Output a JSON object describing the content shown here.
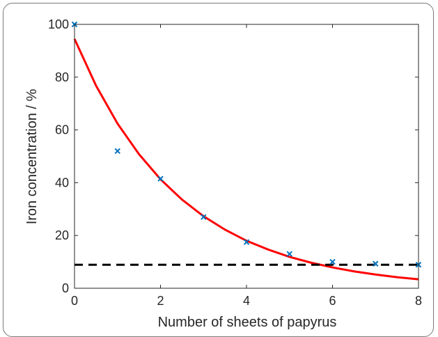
{
  "chart_data": {
    "type": "scatter",
    "title": "",
    "xlabel": "Number of sheets of papyrus",
    "ylabel": "Iron concentration / %",
    "xlim": [
      0,
      8
    ],
    "ylim": [
      0,
      100
    ],
    "xticks": [
      0,
      2,
      4,
      6,
      8
    ],
    "yticks": [
      0,
      20,
      40,
      60,
      80,
      100
    ],
    "grid": false,
    "series": [
      {
        "kind": "scatter",
        "marker": "x",
        "color": "#0072BD",
        "x": [
          0,
          1,
          2,
          3,
          4,
          5,
          6,
          7,
          8
        ],
        "y": [
          100,
          52,
          41.5,
          27,
          17.5,
          13,
          10,
          9.3,
          8.9
        ]
      },
      {
        "kind": "line",
        "style": "solid",
        "color": "#ff0000",
        "x": [
          0,
          0.5,
          1,
          1.5,
          2,
          2.5,
          3,
          3.5,
          4,
          4.5,
          5,
          5.5,
          6,
          6.5,
          7,
          7.5,
          8
        ],
        "y": [
          94.5,
          76.8,
          62.4,
          50.8,
          41.3,
          33.6,
          27.3,
          22.2,
          18.0,
          14.7,
          11.9,
          9.7,
          7.9,
          6.4,
          5.2,
          4.2,
          3.4
        ]
      },
      {
        "kind": "line",
        "style": "dashed",
        "color": "#000000",
        "x": [
          0,
          8
        ],
        "y": [
          8.9,
          8.9
        ]
      }
    ]
  }
}
